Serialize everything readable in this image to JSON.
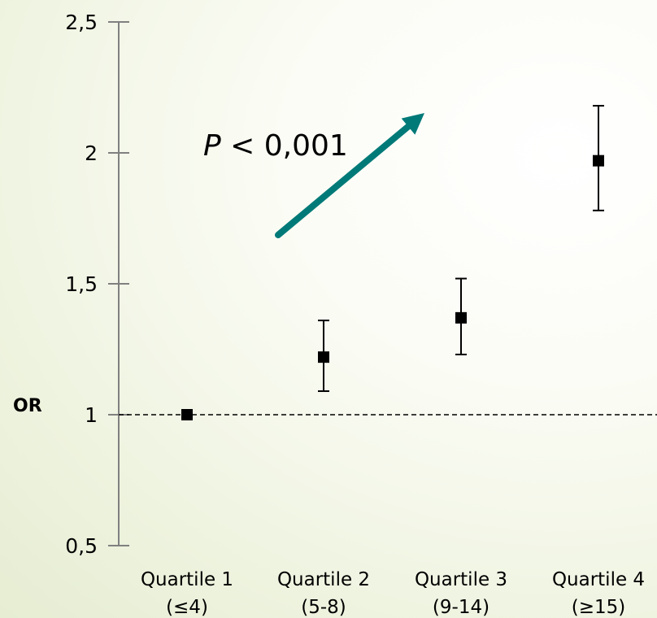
{
  "chart_data": {
    "type": "scatter",
    "ylabel": "OR",
    "ylim": [
      0.5,
      2.5
    ],
    "yticks": [
      0.5,
      1,
      1.5,
      2,
      2.5
    ],
    "ytick_labels": [
      "0,5",
      "1",
      "1,5",
      "2",
      "2,5"
    ],
    "categories": [
      {
        "line1": "Quartile 1",
        "line2": "(≤4)"
      },
      {
        "line1": "Quartile 2",
        "line2": "(5-8)"
      },
      {
        "line1": "Quartile 3",
        "line2": "(9-14)"
      },
      {
        "line1": "Quartile 4",
        "line2": "(≥15)"
      }
    ],
    "series": [
      {
        "values": [
          1.0,
          1.22,
          1.37,
          1.97
        ],
        "ci_low": [
          null,
          1.09,
          1.23,
          1.78
        ],
        "ci_high": [
          null,
          1.36,
          1.52,
          2.18
        ]
      }
    ],
    "reference_line": 1,
    "annotation": {
      "italic": "P",
      "rest": " < 0,001"
    },
    "colors": {
      "arrow": "#007a78",
      "marker": "#000000",
      "axis": "#808080"
    }
  }
}
